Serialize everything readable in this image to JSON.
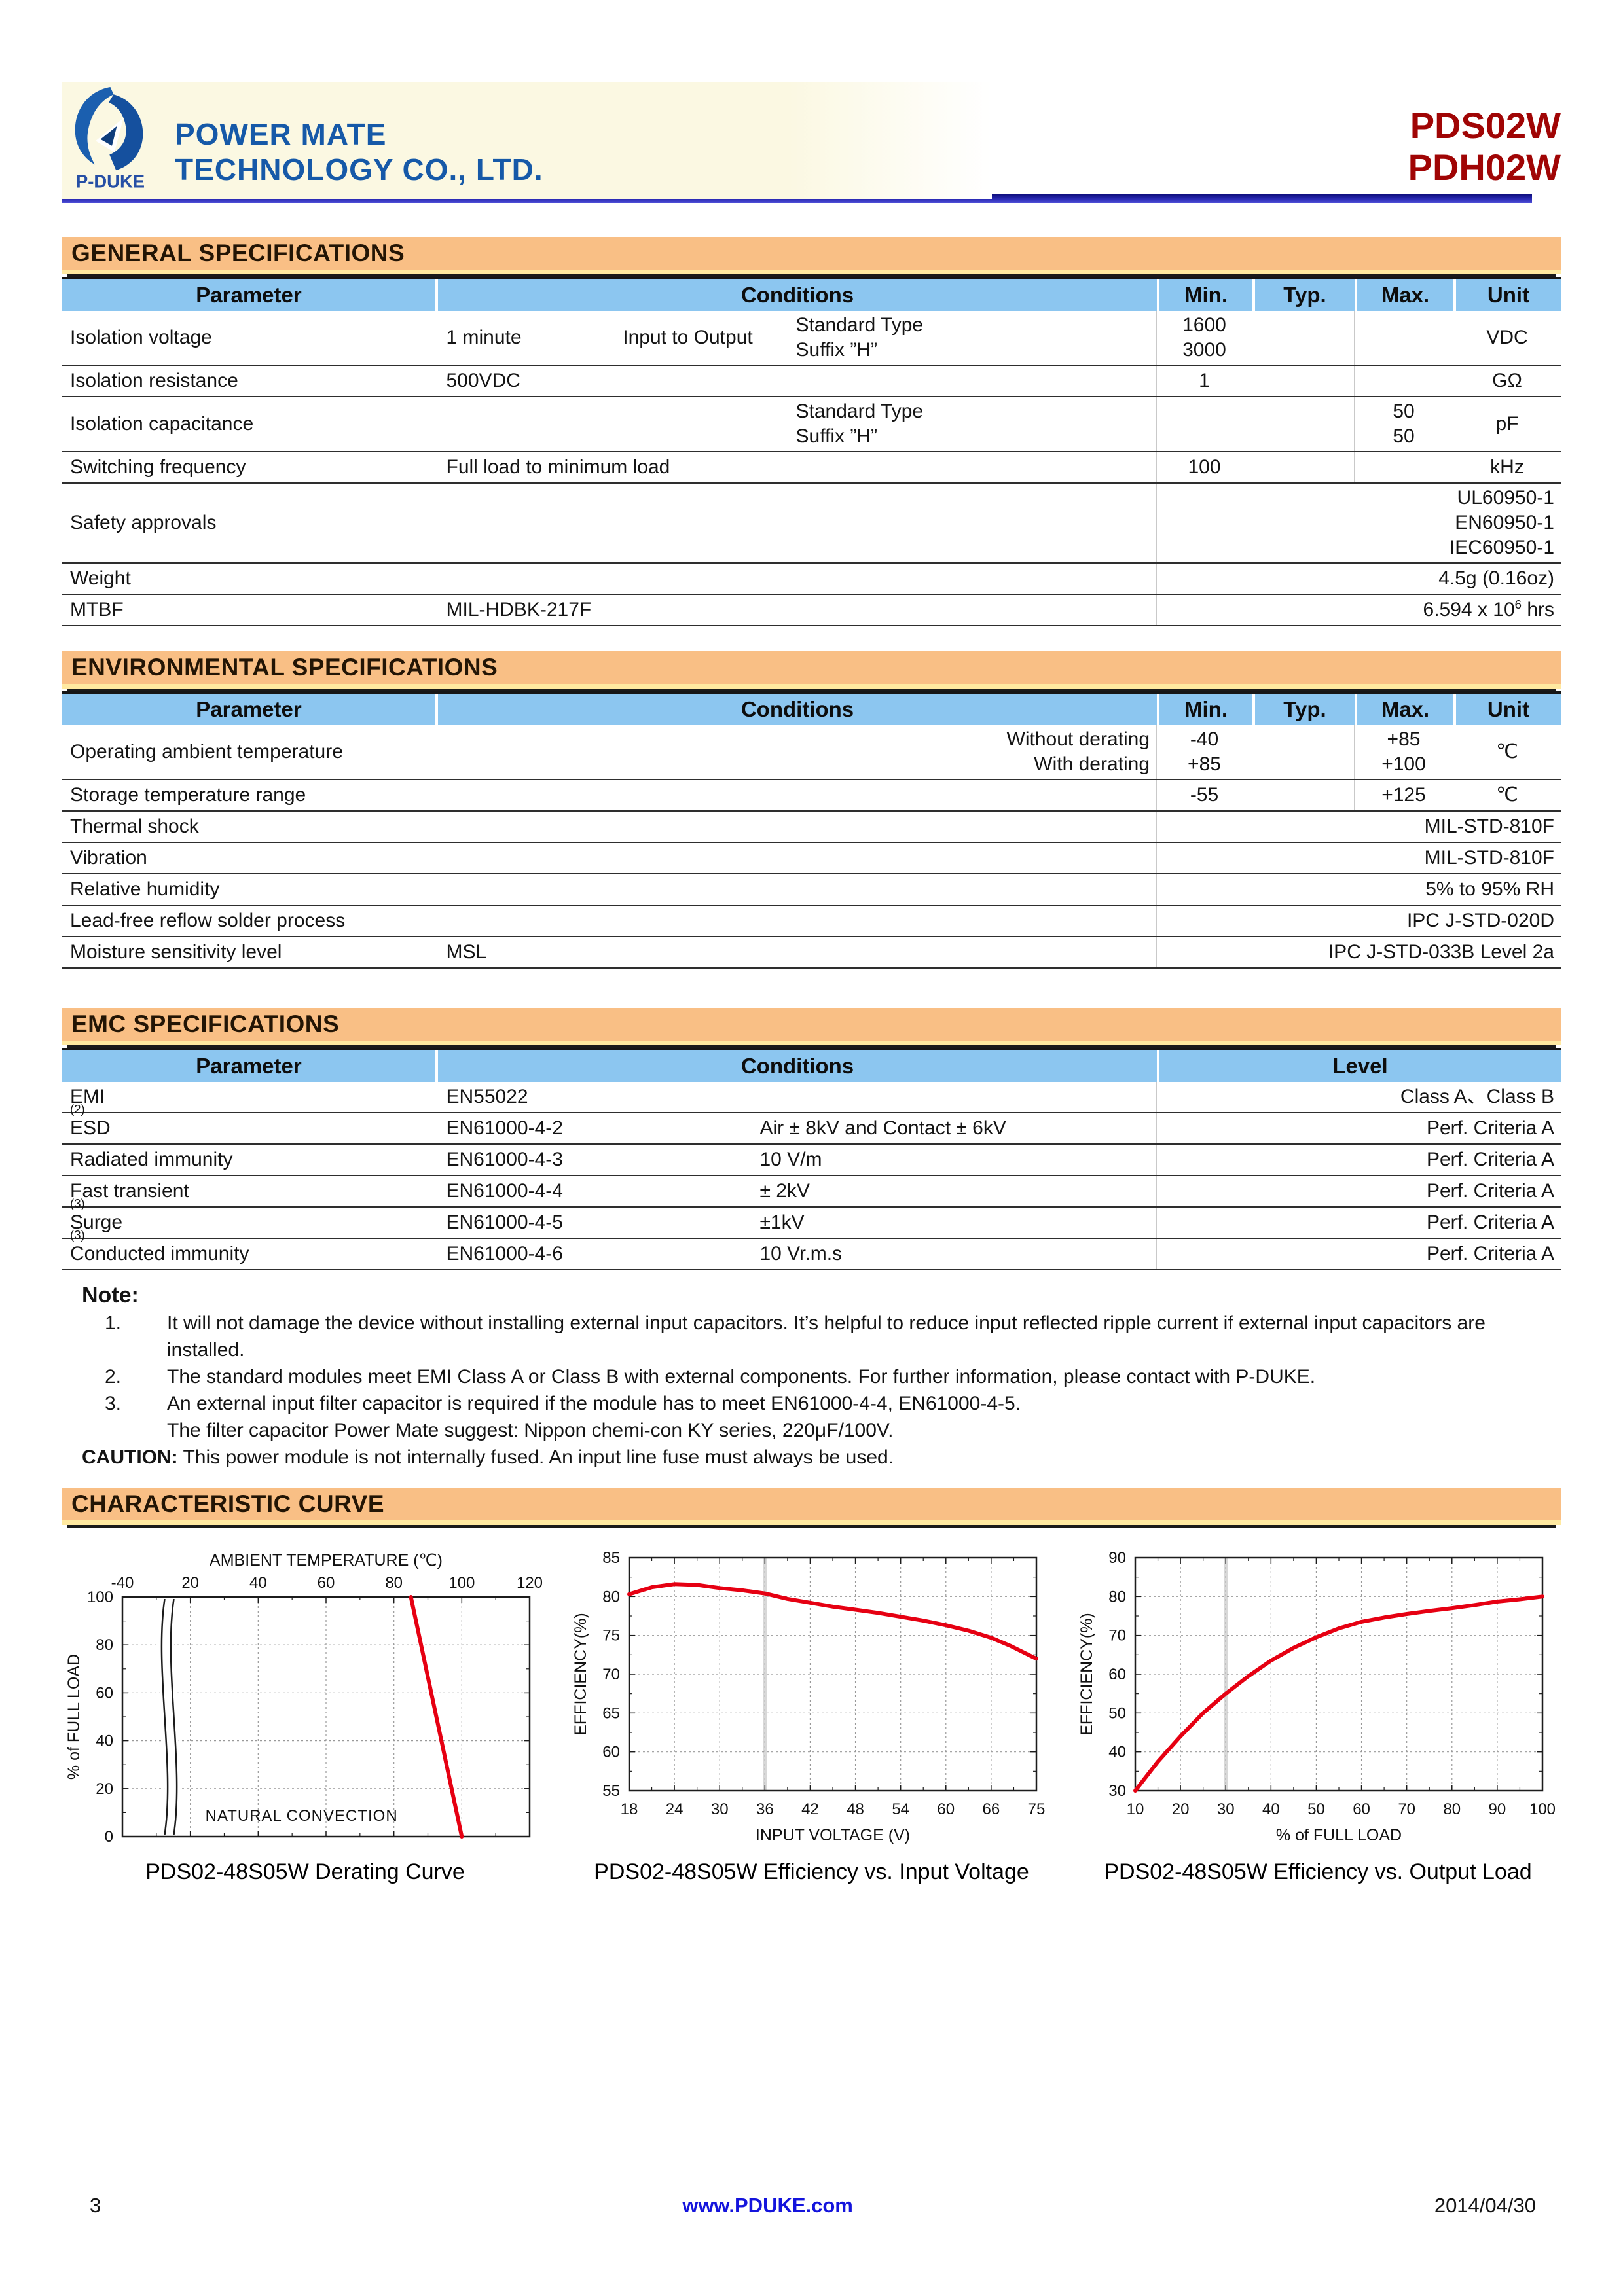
{
  "page": {
    "number": "3",
    "website": "www.PDUKE.com",
    "date": "2014/04/30"
  },
  "header": {
    "company_line1": "POWER MATE",
    "company_line2": "TECHNOLOGY CO., LTD.",
    "logo_text": "P-DUKE",
    "product_line1": "PDS02W",
    "product_line2": "PDH02W"
  },
  "colors": {
    "section_bar_orange": "#F9BF85",
    "section_underline_yellow": "#FFE9A0",
    "table_header_blue": "#8CC6F0",
    "curve_red": "#E60012",
    "product_red": "#A00505",
    "brand_blue": "#1659A8",
    "divider_navy": "#1D1D96",
    "link_blue": "#1414DC"
  },
  "general": {
    "title": "GENERAL SPECIFICATIONS",
    "columns": [
      "Parameter",
      "Conditions",
      "Min.",
      "Typ.",
      "Max.",
      "Unit"
    ],
    "rows": [
      {
        "param": "Isolation voltage",
        "cond": [
          {
            "t": "1 minute",
            "x": 1.5
          },
          {
            "t": "Input to Output",
            "x": 26
          },
          {
            "lines": [
              "Standard Type",
              "Suffix ”H”"
            ],
            "x": 50
          }
        ],
        "min": [
          "1600",
          "3000"
        ],
        "typ": "",
        "max": "",
        "unit": "VDC"
      },
      {
        "param": "Isolation resistance",
        "cond": [
          {
            "t": "500VDC",
            "x": 1.5
          }
        ],
        "min": "1",
        "typ": "",
        "max": "",
        "unit": "GΩ"
      },
      {
        "param": "Isolation capacitance",
        "cond": [
          {
            "lines": [
              "Standard Type",
              "Suffix ”H”"
            ],
            "x": 50
          }
        ],
        "min": "",
        "typ": "",
        "max": [
          "50",
          "50"
        ],
        "unit": "pF"
      },
      {
        "param": "Switching frequency",
        "cond": [
          {
            "t": "Full load to minimum load",
            "x": 1.5
          }
        ],
        "min": "100",
        "typ": "",
        "max": "",
        "unit": "kHz"
      },
      {
        "param": "Safety approvals",
        "cond": [],
        "span": [
          "UL60950-1",
          "EN60950-1",
          "IEC60950-1"
        ]
      },
      {
        "param": "Weight",
        "cond": [],
        "span": [
          "4.5g  (0.16oz)"
        ]
      },
      {
        "param": "MTBF",
        "cond": [
          {
            "t": "MIL-HDBK-217F",
            "x": 1.5
          }
        ],
        "span_parts": [
          {
            "t": "6.594 x 10"
          },
          {
            "t": "6",
            "sup": true
          },
          {
            "t": " hrs"
          }
        ]
      }
    ]
  },
  "environmental": {
    "title": "ENVIRONMENTAL SPECIFICATIONS",
    "columns": [
      "Parameter",
      "Conditions",
      "Min.",
      "Typ.",
      "Max.",
      "Unit"
    ],
    "rows": [
      {
        "param": "Operating ambient temperature",
        "cond": [
          {
            "lines": [
              "Without  derating",
              "With  derating"
            ],
            "r": true
          }
        ],
        "min": [
          "-40",
          "+85"
        ],
        "typ": "",
        "max": [
          "+85",
          "+100"
        ],
        "unit": "℃"
      },
      {
        "param": "Storage temperature range",
        "cond": [],
        "min": "-55",
        "typ": "",
        "max": "+125",
        "unit": "℃"
      },
      {
        "param": "Thermal shock",
        "cond": [],
        "span": [
          "MIL-STD-810F"
        ]
      },
      {
        "param": "Vibration",
        "cond": [],
        "span": [
          "MIL-STD-810F"
        ]
      },
      {
        "param": "Relative humidity",
        "cond": [],
        "span": [
          "5% to 95% RH"
        ]
      },
      {
        "param": "Lead-free reflow solder process",
        "cond": [],
        "span": [
          "IPC  J-STD-020D"
        ]
      },
      {
        "param": "Moisture sensitivity level",
        "cond": [
          {
            "t": "MSL",
            "x": 1.5
          }
        ],
        "span": [
          "IPC  J-STD-033B  Level  2a"
        ]
      }
    ]
  },
  "emc": {
    "title": "EMC SPECIFICATIONS",
    "columns": [
      "Parameter",
      "Conditions",
      "Level"
    ],
    "rows": [
      {
        "param_parts": [
          {
            "t": "EMI"
          },
          {
            "t": "(2)",
            "sup": true
          }
        ],
        "cond": [
          {
            "t": "EN55022",
            "x": 1.5
          }
        ],
        "level": "Class A、Class B"
      },
      {
        "param": "ESD",
        "cond": [
          {
            "t": "EN61000-4-2",
            "x": 1.5
          },
          {
            "t": "Air ± 8kV and Contact ± 6kV",
            "x": 45
          }
        ],
        "level": "Perf. Criteria A"
      },
      {
        "param": "Radiated immunity",
        "cond": [
          {
            "t": "EN61000-4-3",
            "x": 1.5
          },
          {
            "t": "10 V/m",
            "x": 45
          }
        ],
        "level": "Perf. Criteria A"
      },
      {
        "param_parts": [
          {
            "t": "Fast transient "
          },
          {
            "t": "(3)",
            "sup": true
          }
        ],
        "cond": [
          {
            "t": "EN61000-4-4",
            "x": 1.5
          },
          {
            "t": "± 2kV",
            "x": 45
          }
        ],
        "level": "Perf. Criteria A"
      },
      {
        "param_parts": [
          {
            "t": "Surge "
          },
          {
            "t": "(3)",
            "sup": true
          }
        ],
        "cond": [
          {
            "t": "EN61000-4-5",
            "x": 1.5
          },
          {
            "t": "±1kV",
            "x": 45
          }
        ],
        "level": "Perf. Criteria A"
      },
      {
        "param": "Conducted immunity",
        "cond": [
          {
            "t": "EN61000-4-6",
            "x": 1.5
          },
          {
            "t": "10 Vr.m.s",
            "x": 45
          }
        ],
        "level": "Perf. Criteria A"
      }
    ]
  },
  "notes": {
    "heading": "Note:",
    "items": [
      {
        "num": "1.",
        "text": "It will not damage the device without installing external input capacitors. It’s helpful to reduce input reflected ripple current if external input capacitors are installed."
      },
      {
        "num": "2.",
        "text": "The standard modules meet EMI Class A or Class B with external components. For further information, please contact with P-DUKE."
      },
      {
        "num": "3.",
        "text": "An external input filter capacitor is required if the module has to meet EN61000-4-4, EN61000-4-5.",
        "text2": "The filter capacitor Power Mate suggest: Nippon chemi-con KY series, 220μF/100V."
      }
    ],
    "caution_label": "CAUTION:",
    "caution_text": " This power module is not internally fused. An input line fuse must always be used."
  },
  "curves_title": "CHARACTERISTIC CURVE",
  "chart_data": [
    {
      "type": "line",
      "title": "PDS02-48S05W Derating Curve",
      "xlabel": "AMBIENT TEMPERATURE (℃)",
      "xlabel_position": "top",
      "ylabel": "% of FULL LOAD",
      "x_ticks": [
        -40,
        20,
        40,
        60,
        80,
        100,
        120
      ],
      "y_ticks": [
        0,
        20,
        40,
        60,
        80,
        100
      ],
      "xlim": [
        -40,
        120
      ],
      "ylim": [
        0,
        100
      ],
      "grid": "dashed",
      "axis_break_between": [
        -40,
        20
      ],
      "annotation": "NATURAL CONVECTION",
      "series": [
        {
          "color": "#E60012",
          "points": [
            [
              85,
              100
            ],
            [
              100,
              0
            ]
          ]
        }
      ]
    },
    {
      "type": "line",
      "title": "PDS02-48S05W Efficiency vs. Input Voltage",
      "xlabel": "INPUT VOLTAGE (V)",
      "xlabel_position": "bottom",
      "ylabel": "EFFICIENCY(%)",
      "x_ticks": [
        18,
        24,
        30,
        36,
        42,
        48,
        54,
        60,
        66,
        75
      ],
      "y_ticks": [
        55,
        60,
        65,
        70,
        75,
        80,
        85
      ],
      "xlim": [
        18,
        75
      ],
      "ylim": [
        55,
        85
      ],
      "grid": "dashed",
      "emphasis_gridline_x": 36,
      "series": [
        {
          "color": "#E60012",
          "points": [
            [
              18,
              80.3
            ],
            [
              21,
              81.2
            ],
            [
              24,
              81.6
            ],
            [
              27,
              81.5
            ],
            [
              30,
              81.1
            ],
            [
              33,
              80.8
            ],
            [
              36,
              80.4
            ],
            [
              39,
              79.7
            ],
            [
              42,
              79.2
            ],
            [
              45,
              78.7
            ],
            [
              48,
              78.3
            ],
            [
              51,
              77.9
            ],
            [
              54,
              77.4
            ],
            [
              57,
              76.9
            ],
            [
              60,
              76.3
            ],
            [
              63,
              75.6
            ],
            [
              66,
              74.7
            ],
            [
              70,
              73.6
            ],
            [
              75,
              72.0
            ]
          ]
        }
      ]
    },
    {
      "type": "line",
      "title": "PDS02-48S05W Efficiency vs. Output Load",
      "xlabel": "% of FULL LOAD",
      "xlabel_position": "bottom",
      "ylabel": "EFFICIENCY(%)",
      "x_ticks": [
        10,
        20,
        30,
        40,
        50,
        60,
        70,
        80,
        90,
        100
      ],
      "y_ticks": [
        30,
        40,
        50,
        60,
        70,
        80,
        90
      ],
      "xlim": [
        10,
        100
      ],
      "ylim": [
        30,
        90
      ],
      "grid": "dashed",
      "emphasis_gridline_x": 30,
      "series": [
        {
          "color": "#E60012",
          "points": [
            [
              10,
              30
            ],
            [
              15,
              37.5
            ],
            [
              20,
              44
            ],
            [
              25,
              50
            ],
            [
              30,
              55
            ],
            [
              35,
              59.5
            ],
            [
              40,
              63.5
            ],
            [
              45,
              66.8
            ],
            [
              50,
              69.5
            ],
            [
              55,
              71.8
            ],
            [
              60,
              73.5
            ],
            [
              65,
              74.6
            ],
            [
              70,
              75.5
            ],
            [
              75,
              76.3
            ],
            [
              80,
              77
            ],
            [
              85,
              77.8
            ],
            [
              90,
              78.7
            ],
            [
              95,
              79.3
            ],
            [
              100,
              80
            ]
          ]
        }
      ]
    }
  ]
}
